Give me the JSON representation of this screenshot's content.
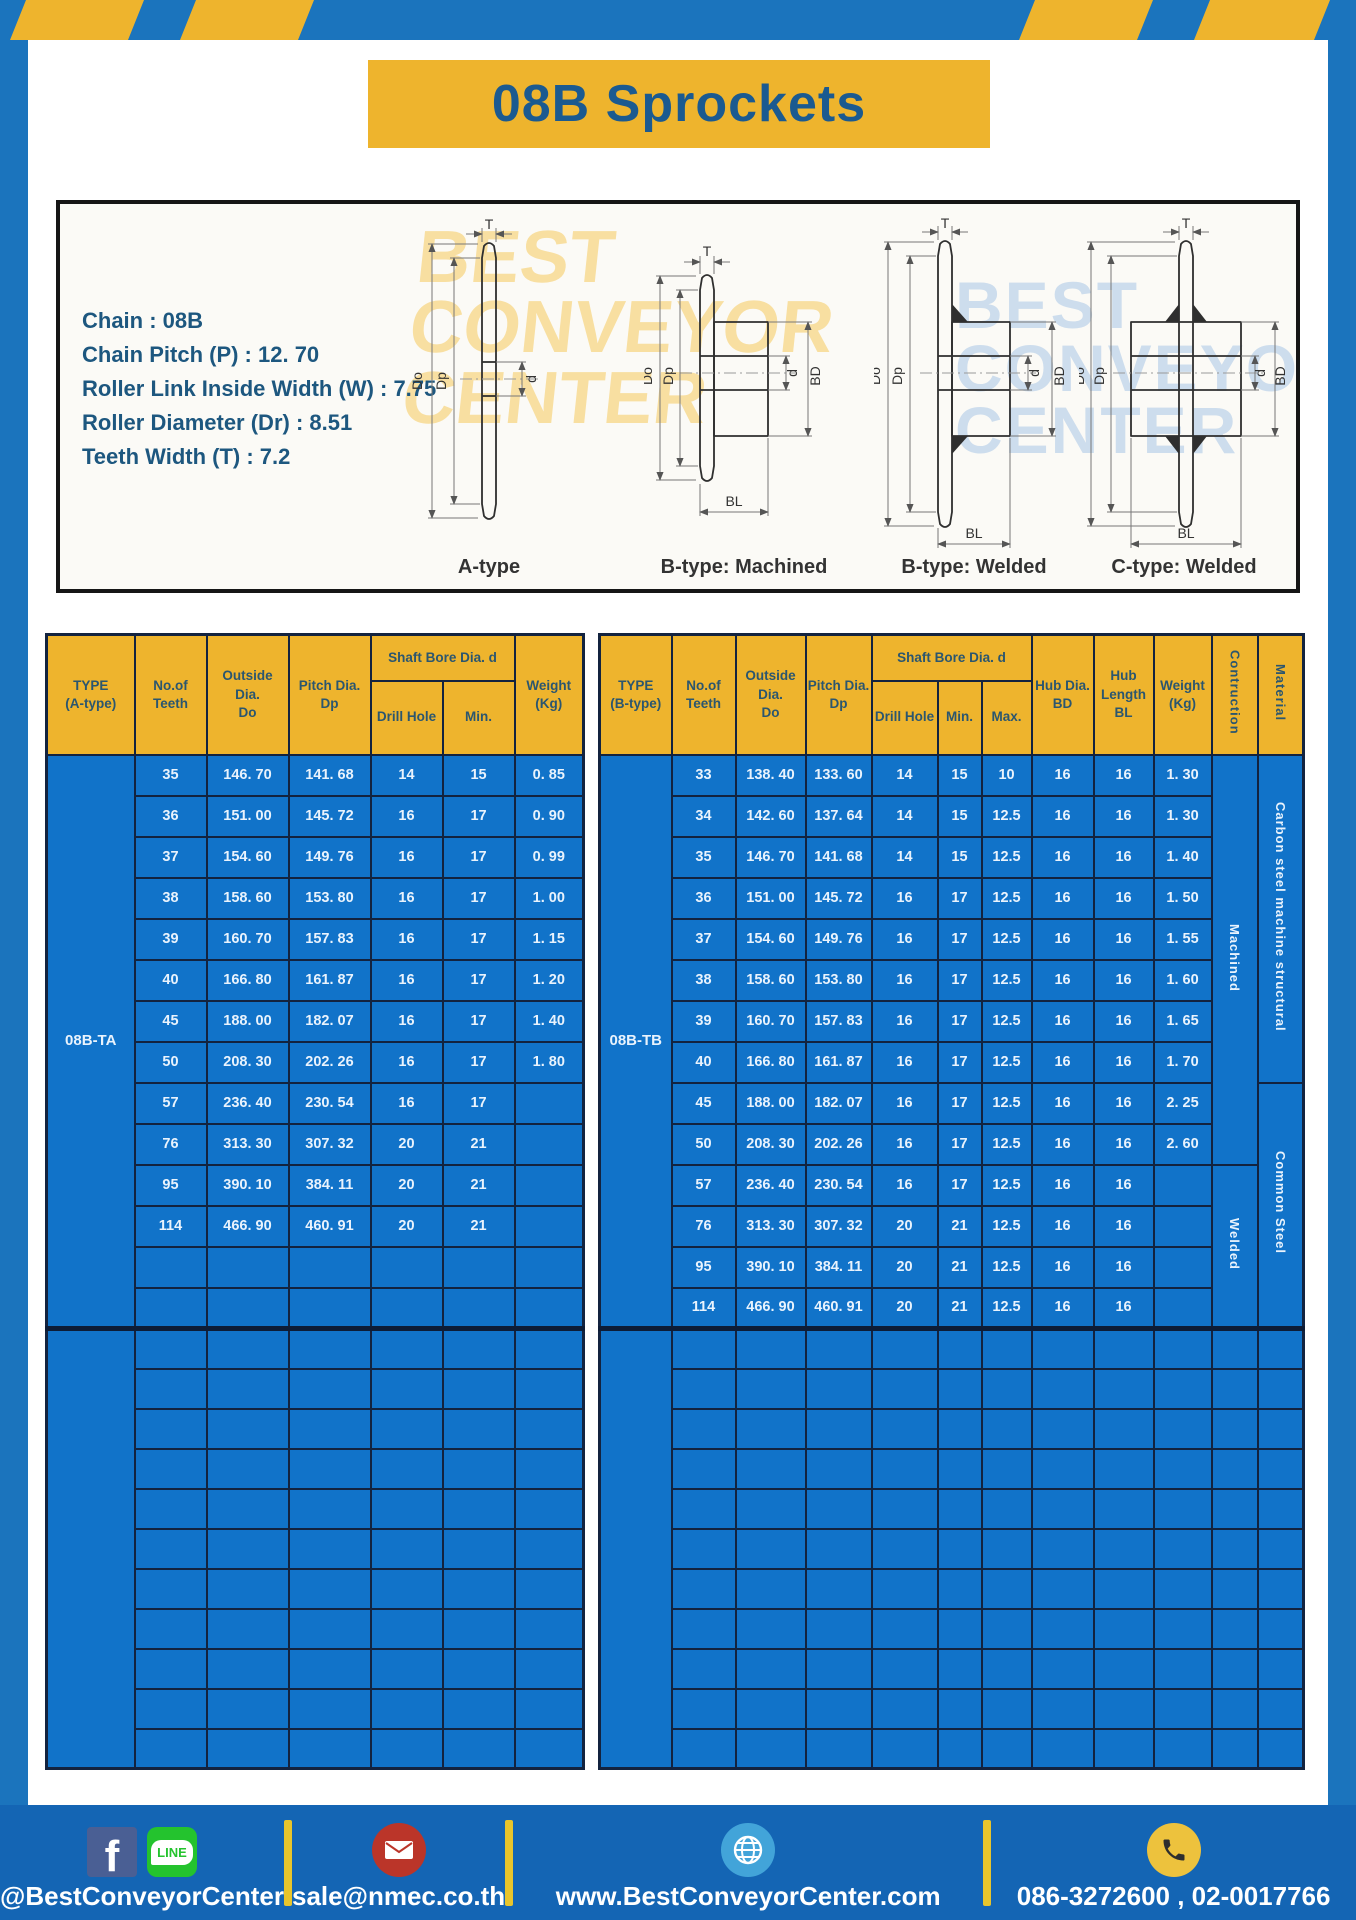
{
  "page": {
    "title": "08B Sprockets"
  },
  "specs": {
    "lines": [
      "Chain : 08B",
      "Chain Pitch (P) : 12. 70",
      "Roller Link Inside Width (W) : 7.75",
      "Roller Diameter (Dr) : 8.51",
      "Teeth Width (T) : 7.2"
    ]
  },
  "watermark": {
    "line1": "BEST",
    "line2": "CONVEYOR",
    "line3": "CENTER"
  },
  "diagrams": {
    "captions": [
      "A-type",
      "B-type: Machined",
      "B-type: Welded",
      "C-type: Welded"
    ],
    "dim_labels": {
      "t": "T",
      "outer": "Do",
      "pitch": "Dp",
      "bore": "d",
      "hub_dia": "BD",
      "hub_len": "BL"
    }
  },
  "left_table": {
    "header": {
      "type": "TYPE\n(A-type)",
      "teeth": "No.of\nTeeth",
      "outside": "Outside\nDia.\nDo",
      "pitch": "Pitch Dia.\nDp",
      "shaft_bore": "Shaft Bore Dia. d",
      "drill": "Drill Hole",
      "min": "Min.",
      "weight": "Weight\n(Kg)"
    },
    "type_label": "08B-TA",
    "rows": [
      [
        "35",
        "146. 70",
        "141. 68",
        "14",
        "15",
        "0. 85"
      ],
      [
        "36",
        "151. 00",
        "145. 72",
        "16",
        "17",
        "0. 90"
      ],
      [
        "37",
        "154. 60",
        "149. 76",
        "16",
        "17",
        "0. 99"
      ],
      [
        "38",
        "158. 60",
        "153. 80",
        "16",
        "17",
        "1. 00"
      ],
      [
        "39",
        "160. 70",
        "157. 83",
        "16",
        "17",
        "1. 15"
      ],
      [
        "40",
        "166. 80",
        "161. 87",
        "16",
        "17",
        "1. 20"
      ],
      [
        "45",
        "188. 00",
        "182. 07",
        "16",
        "17",
        "1. 40"
      ],
      [
        "50",
        "208. 30",
        "202. 26",
        "16",
        "17",
        "1. 80"
      ],
      [
        "57",
        "236. 40",
        "230. 54",
        "16",
        "17",
        ""
      ],
      [
        "76",
        "313. 30",
        "307. 32",
        "20",
        "21",
        ""
      ],
      [
        "95",
        "390. 10",
        "384. 11",
        "20",
        "21",
        ""
      ],
      [
        "114",
        "466. 90",
        "460. 91",
        "20",
        "21",
        ""
      ]
    ],
    "section1_rows": 14,
    "section2_rows": 11
  },
  "right_table": {
    "header": {
      "type": "TYPE\n(B-type)",
      "teeth": "No.of\nTeeth",
      "outside": "Outside\nDia.\nDo",
      "pitch": "Pitch Dia.\nDp",
      "shaft_bore": "Shaft Bore Dia. d",
      "drill": "Drill Hole",
      "min": "Min.",
      "max": "Max.",
      "hub_dia": "Hub Dia.\nBD",
      "hub_len": "Hub\nLength\nBL",
      "weight": "Weight\n(Kg)",
      "construction": "Contruction",
      "material": "Material"
    },
    "type_label": "08B-TB",
    "rows": [
      [
        "33",
        "138. 40",
        "133. 60",
        "14",
        "15",
        "10",
        "16",
        "16",
        "1. 30"
      ],
      [
        "34",
        "142. 60",
        "137. 64",
        "14",
        "15",
        "12.5",
        "16",
        "16",
        "1. 30"
      ],
      [
        "35",
        "146. 70",
        "141. 68",
        "14",
        "15",
        "12.5",
        "16",
        "16",
        "1. 40"
      ],
      [
        "36",
        "151. 00",
        "145. 72",
        "16",
        "17",
        "12.5",
        "16",
        "16",
        "1. 50"
      ],
      [
        "37",
        "154. 60",
        "149. 76",
        "16",
        "17",
        "12.5",
        "16",
        "16",
        "1. 55"
      ],
      [
        "38",
        "158. 60",
        "153. 80",
        "16",
        "17",
        "12.5",
        "16",
        "16",
        "1. 60"
      ],
      [
        "39",
        "160. 70",
        "157. 83",
        "16",
        "17",
        "12.5",
        "16",
        "16",
        "1. 65"
      ],
      [
        "40",
        "166. 80",
        "161. 87",
        "16",
        "17",
        "12.5",
        "16",
        "16",
        "1. 70"
      ],
      [
        "45",
        "188. 00",
        "182. 07",
        "16",
        "17",
        "12.5",
        "16",
        "16",
        "2. 25"
      ],
      [
        "50",
        "208. 30",
        "202. 26",
        "16",
        "17",
        "12.5",
        "16",
        "16",
        "2. 60"
      ],
      [
        "57",
        "236. 40",
        "230. 54",
        "16",
        "17",
        "12.5",
        "16",
        "16",
        ""
      ],
      [
        "76",
        "313. 30",
        "307. 32",
        "20",
        "21",
        "12.5",
        "16",
        "16",
        ""
      ],
      [
        "95",
        "390. 10",
        "384. 11",
        "20",
        "21",
        "12.5",
        "16",
        "16",
        ""
      ],
      [
        "114",
        "466. 90",
        "460. 91",
        "20",
        "21",
        "12.5",
        "16",
        "16",
        ""
      ]
    ],
    "construction_groups": [
      {
        "label": "Machined",
        "span": 10
      },
      {
        "label": "Welded",
        "span": 4
      }
    ],
    "material_groups": [
      {
        "label": "Carbon steel  machine structural",
        "span": 8
      },
      {
        "label": "Common Steel",
        "span": 6
      }
    ],
    "section2_rows": 11
  },
  "footer": {
    "social": "@BestConveyorCenter",
    "line_text": "LINE",
    "facebook_glyph": "f",
    "email": "sale@nmec.co.th",
    "website": "www.BestConveyorCenter.com",
    "phone": "086-3272600 , 02-0017766"
  },
  "colors": {
    "frame_blue": "#1b74bd",
    "banner_yellow": "#eeb42d",
    "table_blue": "#1173c9",
    "border_navy": "#13233f",
    "footer_blue": "#1465b4",
    "title_navy": "#1b5a90",
    "divider_yellow": "#e8c52c",
    "line_green": "#24c32e",
    "email_red": "#bb3529",
    "globe_blue": "#42a4d9",
    "phone_yellow": "#edc23d"
  }
}
